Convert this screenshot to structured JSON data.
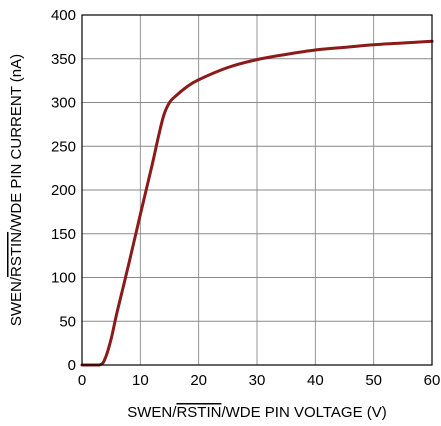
{
  "chart_data": {
    "type": "line",
    "title": "",
    "xlabel_parts": [
      {
        "text": "SWEN/",
        "overline": false
      },
      {
        "text": "RSTIN",
        "overline": true
      },
      {
        "text": "/WDE PIN VOLTAGE (V)",
        "overline": false
      }
    ],
    "ylabel_parts": [
      {
        "text": "SWEN/",
        "overline": false
      },
      {
        "text": "RSTIN",
        "overline": true
      },
      {
        "text": "/WDE PIN CURRENT (nA)",
        "overline": false
      }
    ],
    "xlim": [
      0,
      60
    ],
    "ylim": [
      0,
      400
    ],
    "xticks": [
      0,
      10,
      20,
      30,
      40,
      50,
      60
    ],
    "yticks": [
      0,
      50,
      100,
      150,
      200,
      250,
      300,
      350,
      400
    ],
    "grid": true,
    "series": [
      {
        "color": "#8b1a1a",
        "x": [
          0,
          3,
          4,
          5,
          6,
          8,
          10,
          12,
          13,
          14,
          15,
          16,
          18,
          20,
          25,
          30,
          35,
          40,
          45,
          50,
          55,
          60
        ],
        "y": [
          0,
          0,
          8,
          30,
          60,
          115,
          172,
          228,
          258,
          285,
          300,
          307,
          318,
          326,
          340,
          349,
          355,
          360,
          363,
          366,
          368,
          370
        ]
      }
    ]
  }
}
